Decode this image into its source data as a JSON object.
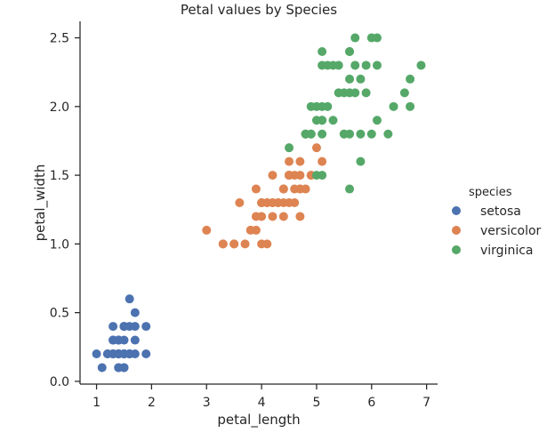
{
  "chart_data": {
    "type": "scatter",
    "title": "Petal values by Species",
    "xlabel": "petal_length",
    "ylabel": "petal_width",
    "xlim": [
      0.7,
      7.2
    ],
    "ylim": [
      -0.02,
      2.62
    ],
    "xticks": [
      1,
      2,
      3,
      4,
      5,
      6,
      7
    ],
    "yticks": [
      0.0,
      0.5,
      1.0,
      1.5,
      2.0,
      2.5
    ],
    "ytick_labels": [
      "0.0",
      "0.5",
      "1.0",
      "1.5",
      "2.0",
      "2.5"
    ],
    "grid": false,
    "legend": {
      "title": "species",
      "placement": "right"
    },
    "series": [
      {
        "name": "setosa",
        "color": "#4C72B0",
        "points": [
          [
            1.4,
            0.2
          ],
          [
            1.4,
            0.2
          ],
          [
            1.3,
            0.2
          ],
          [
            1.5,
            0.2
          ],
          [
            1.4,
            0.2
          ],
          [
            1.7,
            0.4
          ],
          [
            1.4,
            0.3
          ],
          [
            1.5,
            0.2
          ],
          [
            1.4,
            0.2
          ],
          [
            1.5,
            0.1
          ],
          [
            1.5,
            0.2
          ],
          [
            1.6,
            0.2
          ],
          [
            1.4,
            0.1
          ],
          [
            1.1,
            0.1
          ],
          [
            1.2,
            0.2
          ],
          [
            1.5,
            0.4
          ],
          [
            1.3,
            0.4
          ],
          [
            1.4,
            0.3
          ],
          [
            1.7,
            0.3
          ],
          [
            1.5,
            0.3
          ],
          [
            1.7,
            0.2
          ],
          [
            1.5,
            0.4
          ],
          [
            1.0,
            0.2
          ],
          [
            1.7,
            0.5
          ],
          [
            1.9,
            0.2
          ],
          [
            1.6,
            0.2
          ],
          [
            1.6,
            0.4
          ],
          [
            1.5,
            0.2
          ],
          [
            1.4,
            0.2
          ],
          [
            1.6,
            0.2
          ],
          [
            1.6,
            0.2
          ],
          [
            1.5,
            0.4
          ],
          [
            1.5,
            0.1
          ],
          [
            1.4,
            0.2
          ],
          [
            1.5,
            0.2
          ],
          [
            1.2,
            0.2
          ],
          [
            1.3,
            0.2
          ],
          [
            1.4,
            0.1
          ],
          [
            1.3,
            0.2
          ],
          [
            1.5,
            0.2
          ],
          [
            1.3,
            0.3
          ],
          [
            1.3,
            0.3
          ],
          [
            1.3,
            0.2
          ],
          [
            1.6,
            0.6
          ],
          [
            1.9,
            0.4
          ],
          [
            1.4,
            0.3
          ],
          [
            1.6,
            0.2
          ],
          [
            1.4,
            0.2
          ],
          [
            1.5,
            0.2
          ],
          [
            1.4,
            0.2
          ]
        ]
      },
      {
        "name": "versicolor",
        "color": "#DD8452",
        "points": [
          [
            4.7,
            1.4
          ],
          [
            4.5,
            1.5
          ],
          [
            4.9,
            1.5
          ],
          [
            4.0,
            1.3
          ],
          [
            4.6,
            1.5
          ],
          [
            4.5,
            1.3
          ],
          [
            4.7,
            1.6
          ],
          [
            3.3,
            1.0
          ],
          [
            4.6,
            1.3
          ],
          [
            3.9,
            1.4
          ],
          [
            3.5,
            1.0
          ],
          [
            4.2,
            1.5
          ],
          [
            4.0,
            1.0
          ],
          [
            4.7,
            1.4
          ],
          [
            3.6,
            1.3
          ],
          [
            4.4,
            1.4
          ],
          [
            4.5,
            1.5
          ],
          [
            4.1,
            1.0
          ],
          [
            4.5,
            1.5
          ],
          [
            3.9,
            1.1
          ],
          [
            4.8,
            1.8
          ],
          [
            4.0,
            1.3
          ],
          [
            4.9,
            1.5
          ],
          [
            4.7,
            1.2
          ],
          [
            4.3,
            1.3
          ],
          [
            4.4,
            1.4
          ],
          [
            4.8,
            1.4
          ],
          [
            5.0,
            1.7
          ],
          [
            4.5,
            1.5
          ],
          [
            3.5,
            1.0
          ],
          [
            3.8,
            1.1
          ],
          [
            3.7,
            1.0
          ],
          [
            3.9,
            1.2
          ],
          [
            5.1,
            1.6
          ],
          [
            4.5,
            1.5
          ],
          [
            4.5,
            1.6
          ],
          [
            4.7,
            1.5
          ],
          [
            4.4,
            1.3
          ],
          [
            4.1,
            1.3
          ],
          [
            4.0,
            1.3
          ],
          [
            4.4,
            1.2
          ],
          [
            4.6,
            1.4
          ],
          [
            4.0,
            1.2
          ],
          [
            3.3,
            1.0
          ],
          [
            4.2,
            1.3
          ],
          [
            4.2,
            1.2
          ],
          [
            4.2,
            1.3
          ],
          [
            4.3,
            1.3
          ],
          [
            3.0,
            1.1
          ],
          [
            4.1,
            1.3
          ]
        ]
      },
      {
        "name": "virginica",
        "color": "#55A868",
        "points": [
          [
            6.0,
            2.5
          ],
          [
            5.1,
            1.9
          ],
          [
            5.9,
            2.1
          ],
          [
            5.6,
            1.8
          ],
          [
            5.8,
            2.2
          ],
          [
            6.6,
            2.1
          ],
          [
            4.5,
            1.7
          ],
          [
            6.3,
            1.8
          ],
          [
            5.8,
            1.8
          ],
          [
            6.1,
            2.5
          ],
          [
            5.1,
            2.0
          ],
          [
            5.3,
            1.9
          ],
          [
            5.5,
            2.1
          ],
          [
            5.0,
            2.0
          ],
          [
            5.1,
            2.4
          ],
          [
            5.3,
            2.3
          ],
          [
            5.5,
            1.8
          ],
          [
            6.7,
            2.2
          ],
          [
            6.9,
            2.3
          ],
          [
            5.0,
            1.5
          ],
          [
            5.7,
            2.3
          ],
          [
            4.9,
            2.0
          ],
          [
            6.7,
            2.0
          ],
          [
            4.9,
            1.8
          ],
          [
            5.7,
            2.1
          ],
          [
            6.0,
            1.8
          ],
          [
            4.8,
            1.8
          ],
          [
            4.9,
            1.8
          ],
          [
            5.6,
            2.1
          ],
          [
            5.8,
            1.6
          ],
          [
            6.1,
            1.9
          ],
          [
            6.4,
            2.0
          ],
          [
            5.6,
            2.2
          ],
          [
            5.1,
            1.5
          ],
          [
            5.6,
            1.4
          ],
          [
            6.1,
            2.3
          ],
          [
            5.6,
            2.4
          ],
          [
            5.5,
            1.8
          ],
          [
            4.8,
            1.8
          ],
          [
            5.4,
            2.1
          ],
          [
            5.6,
            2.4
          ],
          [
            5.1,
            2.3
          ],
          [
            5.1,
            1.9
          ],
          [
            5.9,
            2.3
          ],
          [
            5.7,
            2.5
          ],
          [
            5.2,
            2.3
          ],
          [
            5.0,
            1.9
          ],
          [
            5.2,
            2.0
          ],
          [
            5.4,
            2.3
          ],
          [
            5.1,
            1.8
          ]
        ]
      }
    ]
  }
}
